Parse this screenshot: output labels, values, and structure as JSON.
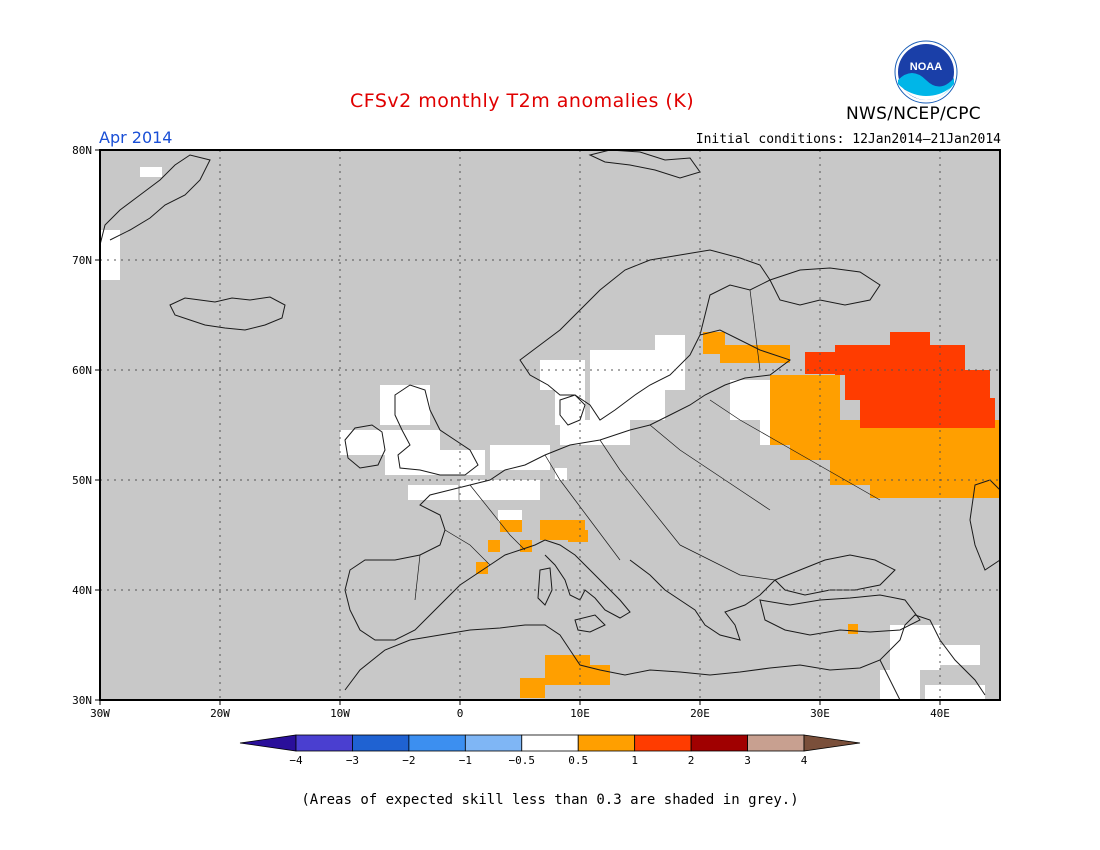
{
  "title": "CFSv2 monthly T2m anomalies (K)",
  "period": "Apr 2014",
  "initial_conditions": "Initial conditions: 12Jan2014–21Jan2014",
  "agency": "NWS/NCEP/CPC",
  "logo_text": "NOAA",
  "footnote": "(Areas of expected skill less than 0.3 are shaded in grey.)",
  "map": {
    "lon_range": [
      -30,
      45
    ],
    "lat_range": [
      30,
      80
    ],
    "lat_labels": [
      "80N",
      "70N",
      "60N",
      "50N",
      "40N",
      "30N"
    ],
    "lon_labels": [
      "30W",
      "20W",
      "10W",
      "0",
      "10E",
      "20E",
      "30E",
      "40E"
    ],
    "background_color": "#c8c8c8"
  },
  "colorbar": {
    "labels": [
      "−4",
      "−3",
      "−2",
      "−1",
      "−0.5",
      "0.5",
      "1",
      "2",
      "3",
      "4"
    ],
    "colors": [
      "#2a0f9a",
      "#4a3fd0",
      "#1f62d2",
      "#3c8ff0",
      "#7fb6f5",
      "#ffffff",
      "#ff9f00",
      "#ff3c00",
      "#a00000",
      "#c8a090",
      "#7a4f3a"
    ]
  },
  "anomaly_regions": [
    {
      "category": "0.5 to 1",
      "color": "#ff9f00",
      "area": "western Russia / Ukraine",
      "lon": [
        25,
        45
      ],
      "lat": [
        49,
        60
      ]
    },
    {
      "category": "1 to 2",
      "color": "#ff3c00",
      "area": "central European Russia",
      "lon": [
        28,
        44
      ],
      "lat": [
        54,
        61
      ]
    },
    {
      "category": "-0.5 to 0.5",
      "color": "#ffffff",
      "area": "British Isles, northern France, Benelux, Denmark, southern Scandinavia",
      "lon": [
        -9,
        15
      ],
      "lat": [
        48,
        59
      ]
    },
    {
      "category": "-0.5 to 0.5",
      "color": "#ffffff",
      "area": "eastern Mediterranean / Levant",
      "lon": [
        35,
        43
      ],
      "lat": [
        30,
        36
      ]
    },
    {
      "category": "0.5 to 1",
      "color": "#ff9f00",
      "area": "Tunisia / Algeria",
      "lon": [
        5,
        13
      ],
      "lat": [
        30,
        34
      ]
    },
    {
      "category": "0.5 to 1",
      "color": "#ff9f00",
      "area": "southern France / northern Italy",
      "lon": [
        1,
        11
      ],
      "lat": [
        42,
        46
      ]
    }
  ]
}
